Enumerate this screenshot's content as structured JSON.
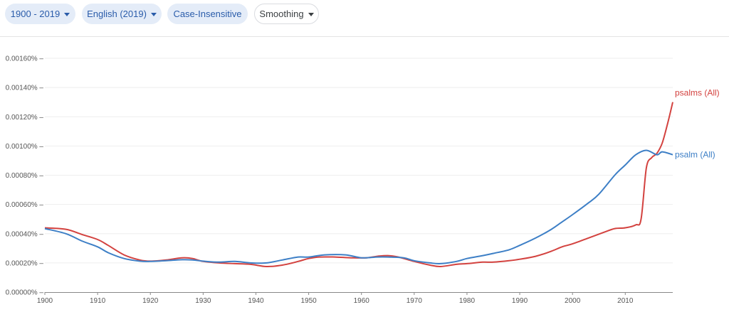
{
  "toolbar": {
    "year_range": "1900 - 2019",
    "corpus": "English (2019)",
    "case": "Case-Insensitive",
    "smoothing": "Smoothing"
  },
  "colors": {
    "psalm": "#3d7fc6",
    "psalms": "#d3423f",
    "chip_bg": "#e4ecf8",
    "chip_text": "#2a5caa"
  },
  "chart_data": {
    "type": "line",
    "title": "",
    "xlabel": "",
    "ylabel": "",
    "xlim": [
      1900,
      2019
    ],
    "ylim": [
      0,
      0.0016
    ],
    "y_ticks": [
      "0.00000%",
      "0.00020%",
      "0.00040%",
      "0.00060%",
      "0.00080%",
      "0.00100%",
      "0.00120%",
      "0.00140%",
      "0.00160%"
    ],
    "x_ticks": [
      "1900",
      "1910",
      "1920",
      "1930",
      "1940",
      "1950",
      "1960",
      "1970",
      "1980",
      "1990",
      "2000",
      "2010"
    ],
    "grid": true,
    "series": [
      {
        "name": "psalms (All)",
        "color": "#d3423f",
        "points": [
          [
            1900,
            0.00044
          ],
          [
            1904,
            0.00043
          ],
          [
            1907,
            0.000395
          ],
          [
            1910,
            0.00036
          ],
          [
            1912,
            0.00032
          ],
          [
            1915,
            0.000255
          ],
          [
            1918,
            0.00022
          ],
          [
            1920,
            0.000212
          ],
          [
            1923,
            0.00022
          ],
          [
            1926,
            0.000235
          ],
          [
            1928,
            0.00023
          ],
          [
            1930,
            0.00021
          ],
          [
            1933,
            0.0002
          ],
          [
            1936,
            0.000195
          ],
          [
            1939,
            0.00019
          ],
          [
            1942,
            0.000175
          ],
          [
            1945,
            0.000185
          ],
          [
            1948,
            0.00021
          ],
          [
            1950,
            0.00023
          ],
          [
            1952,
            0.00024
          ],
          [
            1955,
            0.00024
          ],
          [
            1958,
            0.000235
          ],
          [
            1961,
            0.000235
          ],
          [
            1963,
            0.000245
          ],
          [
            1965,
            0.00025
          ],
          [
            1967,
            0.00024
          ],
          [
            1970,
            0.00021
          ],
          [
            1973,
            0.000185
          ],
          [
            1975,
            0.000175
          ],
          [
            1978,
            0.00019
          ],
          [
            1980,
            0.000195
          ],
          [
            1983,
            0.000205
          ],
          [
            1985,
            0.000205
          ],
          [
            1988,
            0.000215
          ],
          [
            1990,
            0.000225
          ],
          [
            1993,
            0.000245
          ],
          [
            1996,
            0.00028
          ],
          [
            1998,
            0.00031
          ],
          [
            2000,
            0.00033
          ],
          [
            2003,
            0.00037
          ],
          [
            2006,
            0.00041
          ],
          [
            2008,
            0.000435
          ],
          [
            2010,
            0.00044
          ],
          [
            2012,
            0.00046
          ],
          [
            2013,
            0.0005
          ],
          [
            2014,
            0.00085
          ],
          [
            2015,
            0.00092
          ],
          [
            2016,
            0.00095
          ],
          [
            2017,
            0.00102
          ],
          [
            2018,
            0.00115
          ],
          [
            2019,
            0.0013
          ]
        ]
      },
      {
        "name": "psalm (All)",
        "color": "#3d7fc6",
        "points": [
          [
            1900,
            0.000435
          ],
          [
            1904,
            0.0004
          ],
          [
            1907,
            0.00035
          ],
          [
            1910,
            0.00031
          ],
          [
            1912,
            0.00027
          ],
          [
            1915,
            0.00023
          ],
          [
            1918,
            0.000212
          ],
          [
            1920,
            0.00021
          ],
          [
            1923,
            0.000215
          ],
          [
            1926,
            0.000222
          ],
          [
            1928,
            0.00022
          ],
          [
            1930,
            0.000212
          ],
          [
            1933,
            0.000205
          ],
          [
            1936,
            0.00021
          ],
          [
            1939,
            0.0002
          ],
          [
            1942,
            0.0002
          ],
          [
            1945,
            0.00022
          ],
          [
            1948,
            0.00024
          ],
          [
            1950,
            0.00024
          ],
          [
            1953,
            0.000255
          ],
          [
            1957,
            0.000255
          ],
          [
            1960,
            0.000235
          ],
          [
            1963,
            0.00024
          ],
          [
            1965,
            0.00024
          ],
          [
            1968,
            0.000235
          ],
          [
            1970,
            0.000215
          ],
          [
            1973,
            0.0002
          ],
          [
            1975,
            0.000195
          ],
          [
            1978,
            0.00021
          ],
          [
            1980,
            0.00023
          ],
          [
            1983,
            0.00025
          ],
          [
            1985,
            0.000265
          ],
          [
            1988,
            0.00029
          ],
          [
            1990,
            0.00032
          ],
          [
            1993,
            0.00037
          ],
          [
            1996,
            0.00043
          ],
          [
            1998,
            0.00048
          ],
          [
            2000,
            0.00053
          ],
          [
            2003,
            0.00061
          ],
          [
            2005,
            0.00067
          ],
          [
            2008,
            0.0008
          ],
          [
            2010,
            0.00087
          ],
          [
            2012,
            0.00094
          ],
          [
            2014,
            0.00097
          ],
          [
            2016,
            0.00094
          ],
          [
            2017,
            0.00096
          ],
          [
            2019,
            0.00094
          ]
        ]
      }
    ]
  }
}
